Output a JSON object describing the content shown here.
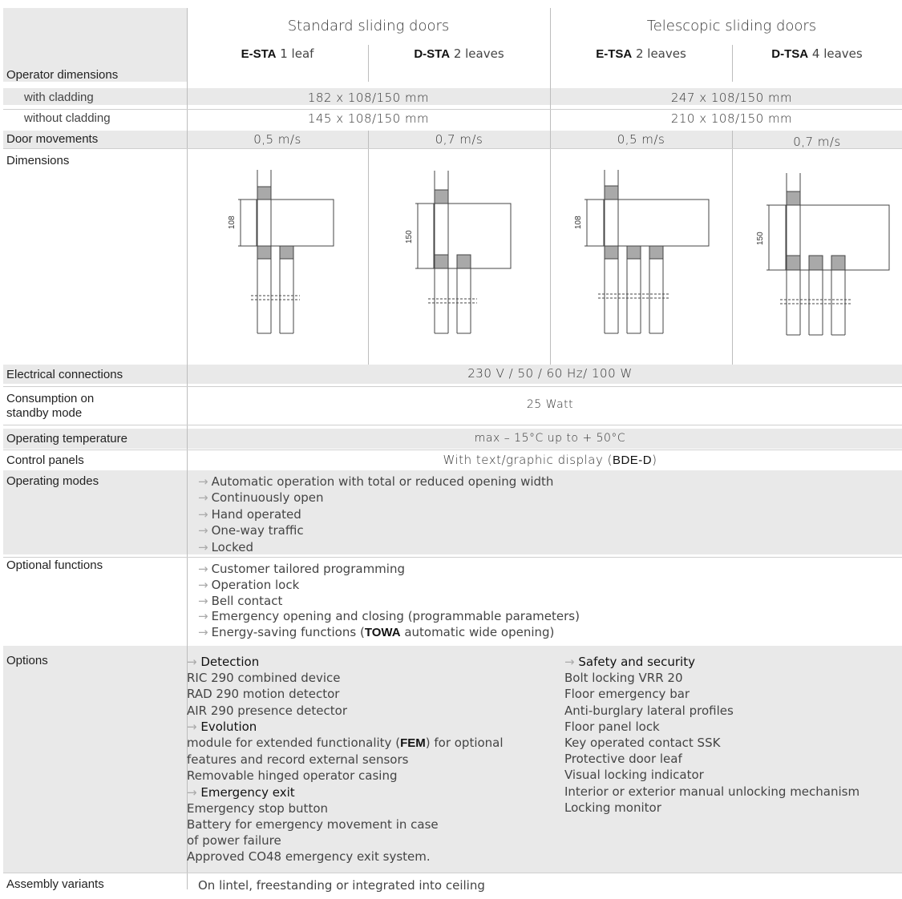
{
  "header": {
    "group_standard": "Standard sliding doors",
    "group_telescopic": "Telescopic sliding doors",
    "models": [
      {
        "code": "E-STA",
        "desc": "1 leaf"
      },
      {
        "code": "D-STA",
        "desc": "2 leaves"
      },
      {
        "code": "E-TSA",
        "desc": "2 leaves"
      },
      {
        "code": "D-TSA",
        "desc": "4 leaves"
      }
    ]
  },
  "rows": {
    "operator_dimensions": "Operator dimensions",
    "with_cladding": {
      "label": "with cladding",
      "standard": "182 x 108/150 mm",
      "telescopic": "247 x 108/150 mm"
    },
    "without_cladding": {
      "label": "without cladding",
      "standard": "145 x 108/150 mm",
      "telescopic": "210 x 108/150 mm"
    },
    "door_movements": {
      "label": "Door movements",
      "values": [
        "0,5 m/s",
        "0,7 m/s",
        "0,5 m/s",
        "0,7 m/s"
      ]
    },
    "dimensions": {
      "label": "Dimensions",
      "heights": [
        "108",
        "150",
        "108",
        "150"
      ]
    },
    "electrical": {
      "label": "Electrical connections",
      "value": "230 V / 50 / 60 Hz/ 100 W"
    },
    "consumption": {
      "label_1": "Consumption on",
      "label_2": "standby mode",
      "value": "25 Watt"
    },
    "temperature": {
      "label": "Operating temperature",
      "value": "max – 15°C up to + 50°C"
    },
    "control_panels": {
      "label": "Control panels",
      "value_pre": "With text/graphic display (",
      "value_bold": "BDE-D",
      "value_post": ")"
    },
    "operating_modes": {
      "label": "Operating modes",
      "items": [
        "Automatic operation with total or reduced opening width",
        "Continuously open",
        "Hand operated",
        "One-way traffic",
        "Locked"
      ]
    },
    "optional_functions": {
      "label": "Optional functions",
      "items": [
        "Customer tailored programming",
        "Operation lock",
        "Bell contact",
        "Emergency opening and closing (programmable parameters)"
      ],
      "last_pre": "Energy-saving functions (",
      "last_bold": "TOWA",
      "last_post": " automatic wide opening)"
    },
    "options": {
      "label": "Options",
      "detection_title": "Detection",
      "detection_items": [
        "RIC 290 combined device",
        "RAD 290 motion detector",
        "AIR 290 presence detector"
      ],
      "evolution_title": "Evolution",
      "evolution_pre": "module for extended functionality (",
      "evolution_bold": "FEM",
      "evolution_post": ") for optional",
      "evolution_line2": "features and record external sensors",
      "evolution_line3": "Removable hinged operator casing",
      "exit_title": "Emergency exit",
      "exit_items": [
        "Emergency stop button",
        "Battery for emergency movement in case",
        "of power failure",
        "Approved CO48 emergency exit system."
      ],
      "safety_title": "Safety and security",
      "safety_items": [
        "Bolt locking VRR 20",
        "Floor emergency bar",
        "Anti-burglary lateral profiles",
        "Floor panel lock",
        "Key operated contact SSK",
        "Protective door leaf",
        "Visual locking indicator",
        "Interior or exterior manual unlocking mechanism",
        "Locking monitor"
      ]
    },
    "assembly": {
      "label": "Assembly variants",
      "value": "On lintel, freestanding or integrated into ceiling"
    }
  },
  "arrow": "→",
  "colors": {
    "cell_bg": "#e9e9e9",
    "divider": "#bdbdbd",
    "diagram_fill": "#a9a9a9"
  }
}
